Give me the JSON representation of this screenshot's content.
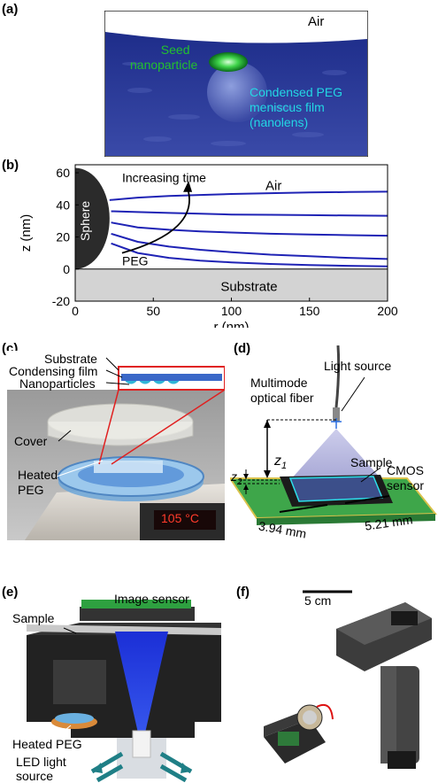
{
  "panels": {
    "a": {
      "label": "(a)",
      "air": "Air",
      "seed": [
        "Seed",
        "nanoparticle"
      ],
      "film": [
        "Condensed PEG",
        "meniscus film",
        "(nanolens)"
      ]
    },
    "b": {
      "label": "(b)"
    },
    "c": {
      "label": "(c)",
      "substrate": "Substrate",
      "film": "Condensing film",
      "nanoparticles": "Nanoparticles",
      "cover": "Cover",
      "heated": [
        "Heated",
        "PEG"
      ],
      "temp": "105 °C"
    },
    "d": {
      "label": "(d)",
      "light": "Light source",
      "fiber": [
        "Multimode",
        "optical fiber"
      ],
      "sample": "Sample",
      "cmos": [
        "CMOS",
        "sensor"
      ],
      "z1": "z",
      "z1sub": "1",
      "z2": "z",
      "z2sub": "2",
      "dim1": "3.94 mm",
      "dim2": "5.21 mm"
    },
    "e": {
      "label": "(e)",
      "sensor": "Image sensor",
      "sample": "Sample",
      "heated": "Heated PEG",
      "led": [
        "LED light",
        "source"
      ]
    },
    "f": {
      "label": "(f)",
      "scale": "5 cm"
    }
  },
  "chart_data": {
    "type": "line",
    "xlabel": "r (nm)",
    "ylabel": "z (nm)",
    "xlim": [
      0,
      200
    ],
    "ylim": [
      -20,
      65
    ],
    "xticks": [
      0,
      50,
      100,
      150,
      200
    ],
    "yticks": [
      -20,
      0,
      20,
      40,
      60
    ],
    "annotations": [
      "Increasing time",
      "Air",
      "PEG",
      "Sphere",
      "Substrate"
    ],
    "series_color": "#1f23b5",
    "series": [
      {
        "x": [
          22,
          40,
          60,
          80,
          100,
          125,
          150,
          175,
          200
        ],
        "y": [
          43,
          44.5,
          45.5,
          46.2,
          46.8,
          47.3,
          47.7,
          48,
          48.2
        ]
      },
      {
        "x": [
          23,
          40,
          60,
          80,
          100,
          125,
          150,
          175,
          200
        ],
        "y": [
          36,
          35.5,
          35,
          34.5,
          34,
          33.8,
          33.6,
          33.4,
          33.2
        ]
      },
      {
        "x": [
          23,
          40,
          60,
          80,
          100,
          125,
          150,
          175,
          200
        ],
        "y": [
          29,
          26,
          24.5,
          23.5,
          22.8,
          22,
          21.5,
          21.1,
          20.8
        ]
      },
      {
        "x": [
          23,
          40,
          60,
          80,
          100,
          125,
          150,
          175,
          200
        ],
        "y": [
          22,
          17,
          14,
          12,
          10.5,
          9,
          8,
          7,
          6.3
        ]
      },
      {
        "x": [
          23,
          40,
          60,
          80,
          100,
          125,
          150,
          175,
          200
        ],
        "y": [
          16,
          10,
          7,
          5.2,
          4.2,
          3.2,
          2.5,
          2,
          1.7
        ]
      }
    ]
  }
}
